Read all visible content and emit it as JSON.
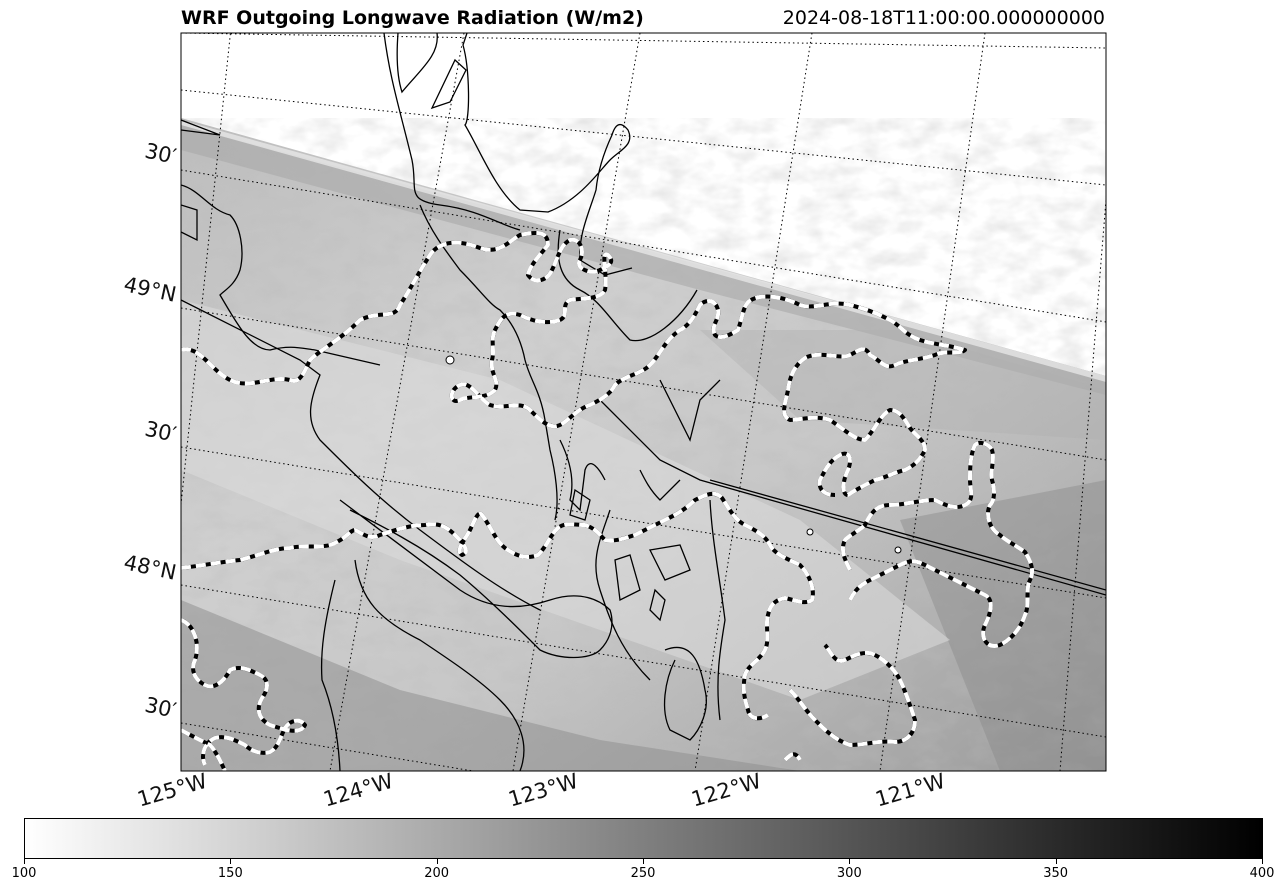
{
  "header": {
    "title": "WRF Outgoing Longwave Radiation (W/m2)",
    "timestamp": "2024-08-18T11:00:00.000000000"
  },
  "map": {
    "variable": "Outgoing Longwave Radiation",
    "units": "W/m2",
    "colormap": "Greys",
    "lat_labels": [
      "30′",
      "49°N",
      "30′",
      "48°N",
      "30′"
    ],
    "lon_labels": [
      "125°W",
      "124°W",
      "123°W",
      "122°W",
      "121°W"
    ],
    "gridlines": "dotted",
    "coastlines": "black solid",
    "contours": "white dashed with black"
  },
  "colorbar": {
    "ticks": [
      "100",
      "150",
      "200",
      "250",
      "300",
      "350",
      "400"
    ],
    "min": 100,
    "max": 400,
    "colors": [
      "#ffffff",
      "#000000"
    ]
  }
}
